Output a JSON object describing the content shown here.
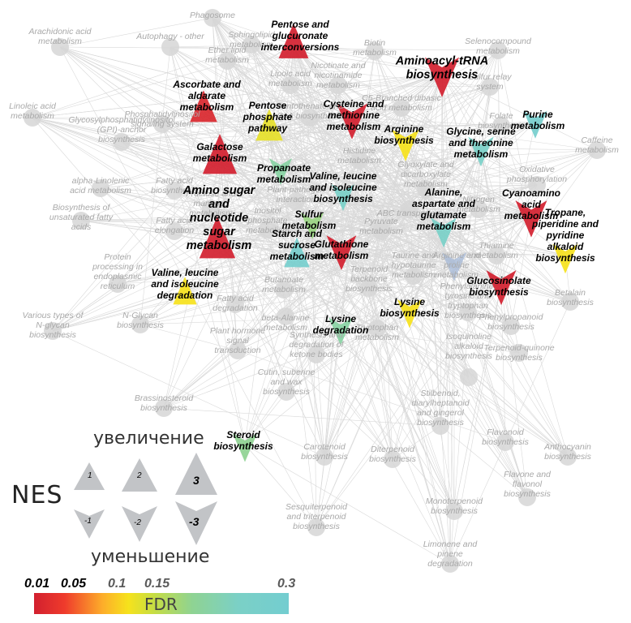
{
  "network": {
    "grey_nodes": [
      {
        "id": "g1",
        "label": "Phagosome"
      },
      {
        "id": "g2",
        "label": "Arachidonic acid\nmetabolism"
      },
      {
        "id": "g3",
        "label": "Autophagy - other"
      },
      {
        "id": "g4",
        "label": "Linoleic acid\nmetabolism"
      },
      {
        "id": "g5",
        "label": "Glycosylphosphatidylinositol\n(GPI)-anchor\nbiosynthesis"
      },
      {
        "id": "g6",
        "label": "alpha-Linolenic\nacid metabolism"
      },
      {
        "id": "g7",
        "label": "Biosynthesis of\nunsaturated fatty\nacids"
      },
      {
        "id": "g8",
        "label": "Protein\nprocessing in\nendoplasmic\nreticulum"
      },
      {
        "id": "g9",
        "label": "N-Glycan\nbiosynthesis"
      },
      {
        "id": "g10",
        "label": "Various types of\nN-glycan\nbiosynthesis"
      },
      {
        "id": "g11",
        "label": "Plant hormone\nsignal\ntransduction"
      },
      {
        "id": "g12",
        "label": "Synthesis and\ndegradation of\nketone bodies"
      },
      {
        "id": "g13",
        "label": "Cutin, suberine\nand wax\nbiosynthesis"
      },
      {
        "id": "g14",
        "label": "Brassinosteroid\nbiosynthesis"
      },
      {
        "id": "g15",
        "label": "Carotenoid\nbiosynthesis"
      },
      {
        "id": "g16",
        "label": "Diterpenoid\nbiosynthesis"
      },
      {
        "id": "g17",
        "label": "Sesquiterpenoid\nand triterpenoid\nbiosynthesis"
      },
      {
        "id": "g18",
        "label": "Stilbenoid,\ndiarylheptanoid\nand gingerol\nbiosynthesis"
      },
      {
        "id": "g19",
        "label": "Flavonoid\nbiosynthesis"
      },
      {
        "id": "g20",
        "label": "Anthocyanin\nbiosynthesis"
      },
      {
        "id": "g21",
        "label": "Flavone and\nflavonol\nbiosynthesis"
      },
      {
        "id": "g22",
        "label": "Monoterpenoid\nbiosynthesis"
      },
      {
        "id": "g23",
        "label": "Limonene and\npinene\ndegradation"
      },
      {
        "id": "g24",
        "label": "Selenocompound\nmetabolism"
      },
      {
        "id": "g25",
        "label": "Sulfur relay\nsystem"
      },
      {
        "id": "g26",
        "label": "Caffeine\nmetabolism"
      },
      {
        "id": "g27",
        "label": "Betalain\nbiosynthesis"
      },
      {
        "id": "g28",
        "label": "Isoquinoline\nalkaloid\nbiosynthesis"
      },
      {
        "id": "g29",
        "label": "Terpenoid-quinone\nbiosynthesis"
      },
      {
        "id": "g30",
        "label": "Phenylpropanoid\nbiosynthesis"
      },
      {
        "id": "g31",
        "label": "Terpenoid\nbackbone\nbiosynthesis"
      },
      {
        "id": "g32",
        "label": "Butanoate\nmetabolism"
      },
      {
        "id": "g33",
        "label": "Biotin\nmetabolism"
      },
      {
        "id": "g34",
        "label": "C5-Branched dibasic\nacid metabolism"
      },
      {
        "id": "g35",
        "label": "Glyoxylate and\ndicarboxylate\nmetabolism"
      },
      {
        "id": "g36",
        "label": "Oxidative\nphosphorylation"
      },
      {
        "id": "g37",
        "label": "Folate\nbiosynthesis"
      },
      {
        "id": "g38",
        "label": "Plant-pathogen\ninteraction"
      },
      {
        "id": "g39",
        "label": "Histidine\nmetabolism"
      },
      {
        "id": "g40",
        "label": "Lipoic acid\nmetabolism"
      },
      {
        "id": "g41",
        "label": "Nicotinate and\nnicotinamide\nmetabolism"
      },
      {
        "id": "g42",
        "label": "Ether lipid\nmetabolism"
      },
      {
        "id": "g43",
        "label": "Sphingolipid\nmetabolism"
      },
      {
        "id": "g44",
        "label": "Phosphatidylinositol\nsignaling system"
      },
      {
        "id": "g45",
        "label": "Fatty acid\nbiosynthesis"
      },
      {
        "id": "g46",
        "label": "Fatty acid\nelongation"
      },
      {
        "id": "g47",
        "label": "Fructose and\nmannose\nmetabolism"
      },
      {
        "id": "g48",
        "label": "Inositol\nphosphate\nmetabolism"
      },
      {
        "id": "g49",
        "label": "Fatty acid\ndegradation"
      },
      {
        "id": "g50",
        "label": "beta-Alanine\nmetabolism"
      },
      {
        "id": "g51",
        "label": "Pyruvate\nmetabolism"
      },
      {
        "id": "g52",
        "label": "Taurine and\nhypotaurine\nmetabolism"
      },
      {
        "id": "g53",
        "label": "Tryptophan\nmetabolism"
      },
      {
        "id": "g54",
        "label": "Phenylalanine,\ntyrosine and\ntryptophan\nbiosynthesis"
      },
      {
        "id": "g55",
        "label": "Pantothenate and\nCoA biosynthesis"
      },
      {
        "id": "g56",
        "label": "Thiamine\nmetabolism"
      },
      {
        "id": "g57",
        "label": "ABC transporters"
      },
      {
        "id": "g58",
        "label": "Nitrogen\nmetabolism"
      }
    ],
    "colored_nodes": [
      {
        "id": "c1",
        "label": "Pentose and\nglucuronate\ninterconversions",
        "fdr": 0.01,
        "nes": 2.3,
        "style": "key"
      },
      {
        "id": "c2",
        "label": "Aminoacyl-tRNA\nbiosynthesis",
        "fdr": 0.01,
        "nes": -2.8,
        "style": "big"
      },
      {
        "id": "c3",
        "label": "Ascorbate and\naldarate\nmetabolism",
        "fdr": 0.02,
        "nes": 2.0,
        "style": "key"
      },
      {
        "id": "c4",
        "label": "Galactose\nmetabolism",
        "fdr": 0.01,
        "nes": 2.8,
        "style": "key"
      },
      {
        "id": "c5",
        "label": "Cysteine and\nmethionine\nmetabolism",
        "fdr": 0.01,
        "nes": -2.4,
        "style": "key"
      },
      {
        "id": "c6",
        "label": "Pentose\nphosphate\npathway",
        "fdr": 0.11,
        "nes": 2.0,
        "style": "key"
      },
      {
        "id": "c7",
        "label": "Arginine\nbiosynthesis",
        "fdr": 0.1,
        "nes": -2.0,
        "style": "key"
      },
      {
        "id": "c8",
        "label": "Glycine, serine\nand threonine\nmetabolism",
        "fdr": 0.25,
        "nes": -1.8,
        "style": "key"
      },
      {
        "id": "c9",
        "label": "Purine\nmetabolism",
        "fdr": 0.28,
        "nes": -1.6,
        "style": "key"
      },
      {
        "id": "c10",
        "label": "Propanoate\nmetabolism",
        "fdr": 0.2,
        "nes": -1.5,
        "style": "key"
      },
      {
        "id": "c11",
        "label": "Valine, leucine\nand isoleucine\nbiosynthesis",
        "fdr": 0.25,
        "nes": -1.5,
        "style": "key"
      },
      {
        "id": "c12",
        "label": "Cyanoamino\nacid\nmetabolism",
        "fdr": 0.01,
        "nes": -2.5,
        "style": "key"
      },
      {
        "id": "c13",
        "label": "Amino sugar\nand\nnucleotide\nsugar\nmetabolism",
        "fdr": 0.01,
        "nes": 3.0,
        "style": "big"
      },
      {
        "id": "c14",
        "label": "Sulfur\nmetabolism",
        "fdr": 0.17,
        "nes": -1.5,
        "style": "key"
      },
      {
        "id": "c15",
        "label": "Starch and\nsucrose\nmetabolism",
        "fdr": 0.28,
        "nes": 1.8,
        "style": "key"
      },
      {
        "id": "c16",
        "label": "Alanine,\naspartate and\nglutamate\nmetabolism",
        "fdr": 0.25,
        "nes": -1.8,
        "style": "key"
      },
      {
        "id": "c17",
        "label": "Glutathione\nmetabolism",
        "fdr": 0.01,
        "nes": -2.3,
        "style": "key"
      },
      {
        "id": "c18",
        "label": "Tropane,\npiperidine and\npyridine\nalkaloid\nbiosynthesis",
        "fdr": 0.1,
        "nes": -1.8,
        "style": "key"
      },
      {
        "id": "c19",
        "label": "Valine, leucine\nand isoleucine\ndegradation",
        "fdr": 0.1,
        "nes": 1.6,
        "style": "key"
      },
      {
        "id": "c20",
        "label": "Glucosinolate\nbiosynthesis",
        "fdr": 0.01,
        "nes": -2.3,
        "style": "key"
      },
      {
        "id": "c21",
        "label": "Lysine\nbiosynthesis",
        "fdr": 0.1,
        "nes": -1.7,
        "style": "key"
      },
      {
        "id": "c22",
        "label": "Lysine\ndegradation",
        "fdr": 0.2,
        "nes": -1.6,
        "style": "key"
      },
      {
        "id": "c23",
        "label": "Steroid\nbiosynthesis",
        "fdr": 0.18,
        "nes": -1.7,
        "style": "key"
      },
      {
        "id": "c24",
        "label": "Arginine and\nproline\nmetabolism",
        "fdr": 0.28,
        "nes": -1.7,
        "style": "grey"
      }
    ]
  },
  "legend": {
    "increase_label": "увеличение",
    "decrease_label": "уменьшение",
    "nes_label": "NES",
    "up_values": [
      "1",
      "2",
      "3"
    ],
    "down_values": [
      "-1",
      "-2",
      "-3"
    ],
    "fdr_title": "FDR",
    "fdr_ticks": [
      "0.01",
      "0.05",
      "0.1",
      "0.15",
      "0.3"
    ]
  },
  "colors": {
    "edge": "#d9d9d9",
    "grey_node": "#d6d6d6",
    "legend_triangle": "#c2c4c7",
    "fdr_scale": [
      "#d2202f",
      "#ef3b2c",
      "#fdae2a",
      "#f6e21c",
      "#c6dd43",
      "#8fd392",
      "#7bd0c6",
      "#73cdd0"
    ]
  }
}
